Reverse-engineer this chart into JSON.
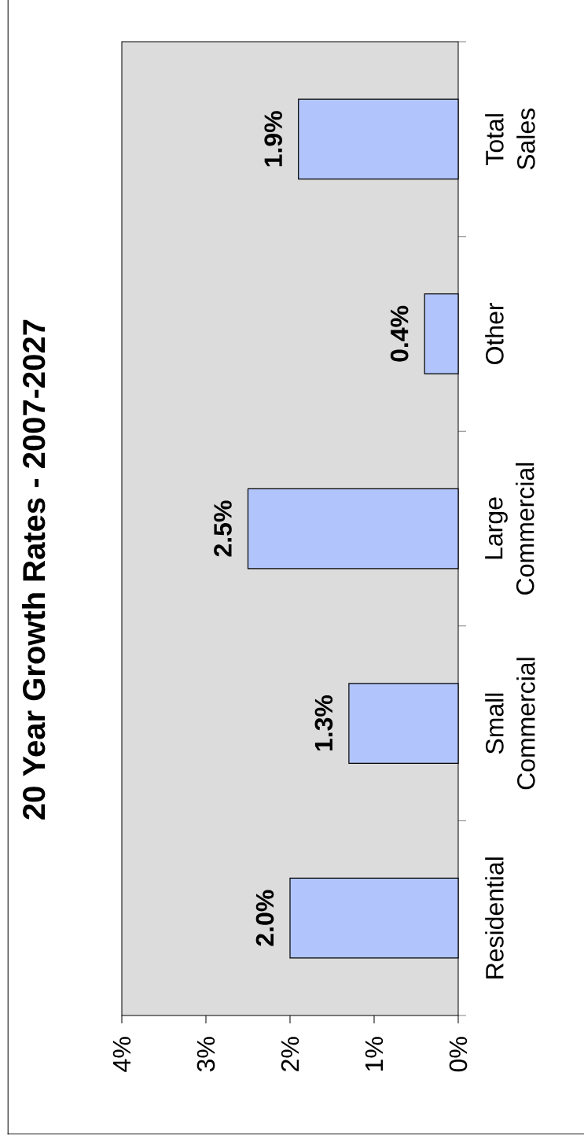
{
  "chart_data": {
    "type": "bar",
    "orientation": "horizontal",
    "title": "20 Year Growth Rates - 2007-2027",
    "categories": [
      "Total Sales",
      "Other",
      "Large Commercial",
      "Small Commercial",
      "Residential"
    ],
    "values": [
      1.9,
      0.4,
      2.5,
      1.3,
      2.0
    ],
    "value_labels": [
      "1.9%",
      "0.4%",
      "2.5%",
      "1.3%",
      "2.0%"
    ],
    "color": "#b1c4fb",
    "xlim": [
      4,
      0
    ],
    "xticks": [
      {
        "value": 4,
        "label": "4%"
      },
      {
        "value": 3,
        "label": "3%"
      },
      {
        "value": 2,
        "label": "2%"
      },
      {
        "value": 1,
        "label": "1%"
      },
      {
        "value": 0,
        "label": "0%"
      }
    ]
  }
}
